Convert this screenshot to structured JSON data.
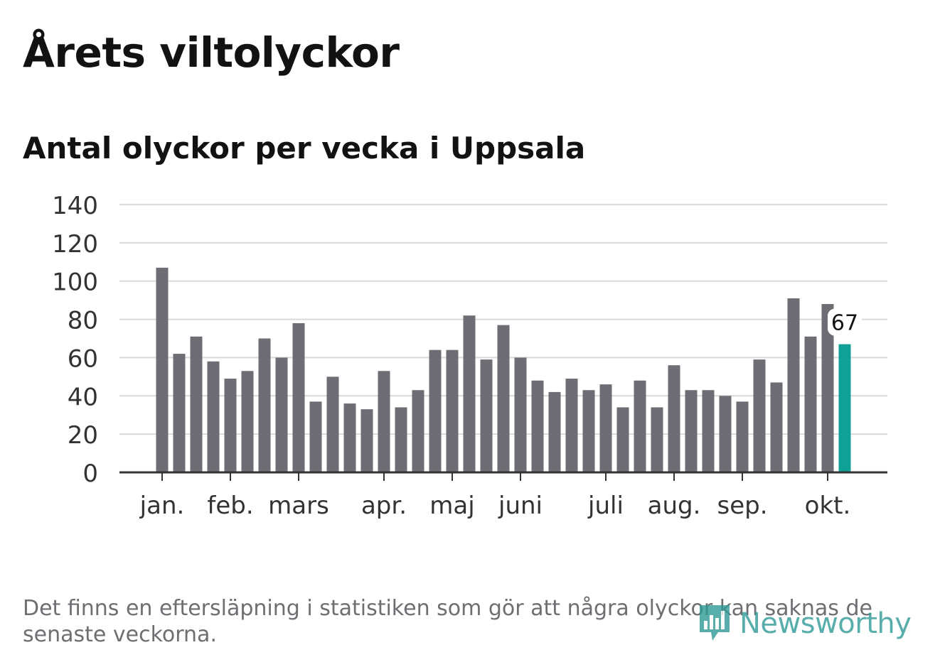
{
  "title": "Årets viltolyckor",
  "subtitle": "Antal olyckor per vecka i Uppsala",
  "footnote": "Det finns en eftersläpning i statistiken som gör att några olyckor kan saknas de senaste veckorna.",
  "logo": {
    "text": "Newsworthy",
    "icon": "newsworthy-chart-bubble-icon"
  },
  "colors": {
    "bar": "#6e6d73",
    "highlight": "#0fa198",
    "grid": "#d9d9d9",
    "axis": "#333333",
    "text": "#121212"
  },
  "chart_data": {
    "type": "bar",
    "title": "Antal olyckor per vecka i Uppsala",
    "xlabel": "",
    "ylabel": "",
    "ylim": [
      0,
      140
    ],
    "yticks": [
      0,
      20,
      40,
      60,
      80,
      100,
      120,
      140
    ],
    "grid": true,
    "values": [
      107,
      62,
      71,
      58,
      49,
      53,
      70,
      60,
      78,
      37,
      50,
      36,
      33,
      53,
      34,
      43,
      64,
      64,
      82,
      59,
      77,
      60,
      48,
      42,
      49,
      43,
      46,
      34,
      48,
      34,
      56,
      43,
      43,
      40,
      37,
      59,
      47,
      91,
      71,
      88,
      67
    ],
    "highlight_index": 40,
    "highlight_label": "67",
    "month_ticks": [
      {
        "label": "jan.",
        "week": 0
      },
      {
        "label": "feb.",
        "week": 4
      },
      {
        "label": "mars",
        "week": 8
      },
      {
        "label": "apr.",
        "week": 13
      },
      {
        "label": "maj",
        "week": 17
      },
      {
        "label": "juni",
        "week": 21
      },
      {
        "label": "juli",
        "week": 26
      },
      {
        "label": "aug.",
        "week": 30
      },
      {
        "label": "sep.",
        "week": 34
      },
      {
        "label": "okt.",
        "week": 39
      }
    ]
  }
}
